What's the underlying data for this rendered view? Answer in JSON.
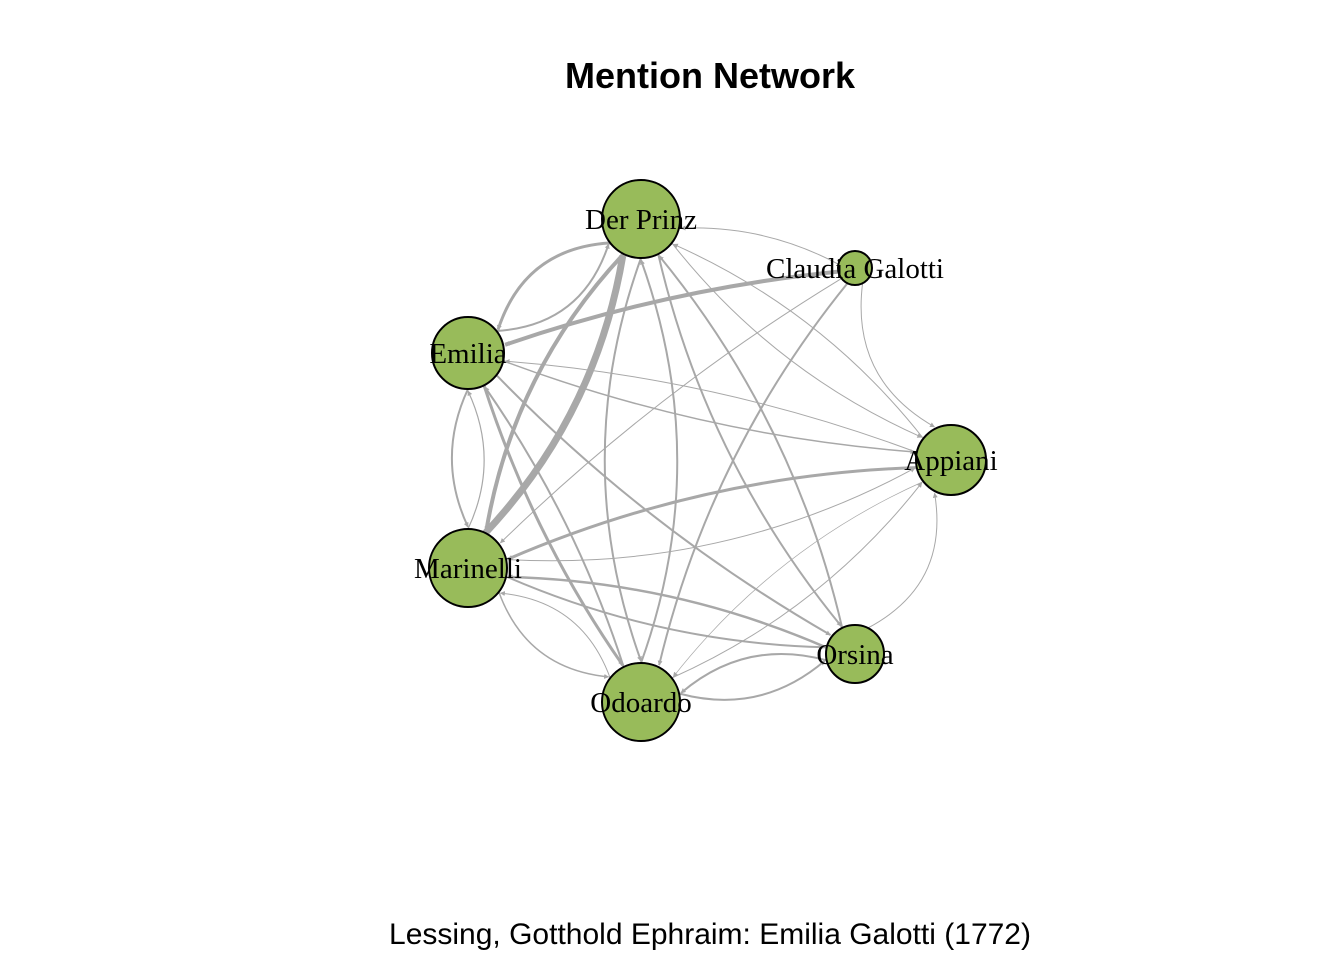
{
  "title": "Mention Network",
  "caption": "Lessing, Gotthold Ephraim: Emilia Galotti (1772)",
  "colors": {
    "node_fill": "#98bb5a",
    "node_stroke": "#000000",
    "edge": "#a8a8a8",
    "background": "#ffffff"
  },
  "nodes": [
    {
      "id": "prinz",
      "label": "Der Prinz"
    },
    {
      "id": "claudia",
      "label": "Claudia Galotti"
    },
    {
      "id": "emilia",
      "label": "Emilia"
    },
    {
      "id": "appiani",
      "label": "Appiani"
    },
    {
      "id": "marinelli",
      "label": "Marinelli"
    },
    {
      "id": "orsina",
      "label": "Orsina"
    },
    {
      "id": "odoardo",
      "label": "Odoardo"
    }
  ]
}
